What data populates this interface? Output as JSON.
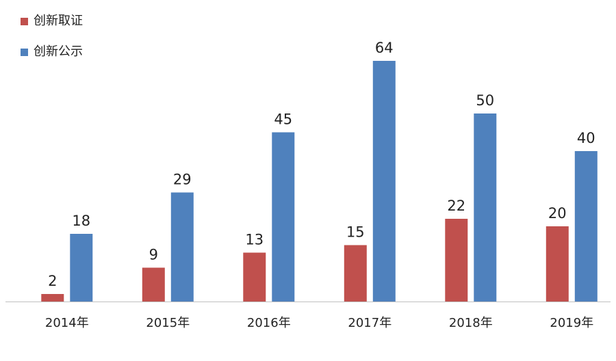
{
  "colors": {
    "series1": "#c0504d",
    "series2": "#4f81bd",
    "axis": "#bfbfbf",
    "text": "#222222"
  },
  "chart_data": {
    "type": "bar",
    "categories": [
      "2014年",
      "2015年",
      "2016年",
      "2017年",
      "2018年",
      "2019年"
    ],
    "series": [
      {
        "name": "创新取证",
        "values": [
          2,
          9,
          13,
          15,
          22,
          20
        ]
      },
      {
        "name": "创新公示",
        "values": [
          18,
          29,
          45,
          64,
          50,
          40
        ]
      }
    ],
    "title": "",
    "xlabel": "",
    "ylabel": "",
    "ylim": [
      0,
      64
    ],
    "grid": false,
    "legend_position": "top-left"
  }
}
